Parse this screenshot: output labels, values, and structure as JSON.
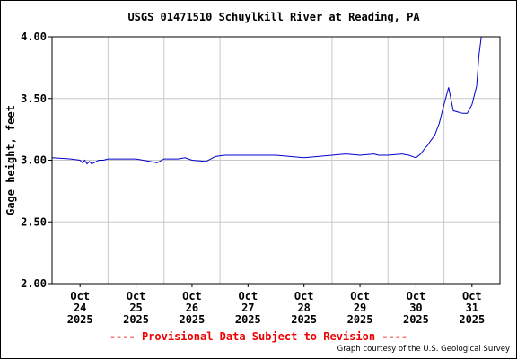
{
  "chart_data": {
    "type": "line",
    "title": "USGS 01471510 Schuylkill River at Reading, PA",
    "ylabel": "Gage height, feet",
    "xlabel": "",
    "ylim": [
      2.0,
      4.0
    ],
    "yticks": [
      "2.00",
      "2.50",
      "3.00",
      "3.50",
      "4.00"
    ],
    "xlim": [
      "2025-10-23T12:00",
      "2025-10-31T12:00"
    ],
    "xticks": [
      {
        "month": "Oct",
        "day": "24",
        "year": "2025"
      },
      {
        "month": "Oct",
        "day": "25",
        "year": "2025"
      },
      {
        "month": "Oct",
        "day": "26",
        "year": "2025"
      },
      {
        "month": "Oct",
        "day": "27",
        "year": "2025"
      },
      {
        "month": "Oct",
        "day": "28",
        "year": "2025"
      },
      {
        "month": "Oct",
        "day": "29",
        "year": "2025"
      },
      {
        "month": "Oct",
        "day": "30",
        "year": "2025"
      },
      {
        "month": "Oct",
        "day": "31",
        "year": "2025"
      }
    ],
    "grid": true,
    "colors": {
      "line": "#0000cc",
      "grid": "#c8c8c8",
      "provisional": "#ee0000"
    },
    "series": [
      {
        "x": [
          "2025-10-23T12:00",
          "2025-10-23T20:00",
          "2025-10-24T00:00",
          "2025-10-24T01:00",
          "2025-10-24T02:00",
          "2025-10-24T03:00",
          "2025-10-24T04:00",
          "2025-10-24T05:00",
          "2025-10-24T06:00",
          "2025-10-24T07:00",
          "2025-10-24T08:00",
          "2025-10-24T10:00",
          "2025-10-24T12:00",
          "2025-10-24T18:00",
          "2025-10-25T00:00",
          "2025-10-25T06:00",
          "2025-10-25T09:00",
          "2025-10-25T12:00",
          "2025-10-25T18:00",
          "2025-10-25T21:00",
          "2025-10-26T00:00",
          "2025-10-26T06:00",
          "2025-10-26T10:00",
          "2025-10-26T14:00",
          "2025-10-26T18:00",
          "2025-10-27T00:00",
          "2025-10-27T06:00",
          "2025-10-27T12:00",
          "2025-10-27T18:00",
          "2025-10-28T00:00",
          "2025-10-28T06:00",
          "2025-10-28T12:00",
          "2025-10-28T18:00",
          "2025-10-29T00:00",
          "2025-10-29T06:00",
          "2025-10-29T08:00",
          "2025-10-29T12:00",
          "2025-10-29T18:00",
          "2025-10-29T21:00",
          "2025-10-30T00:00",
          "2025-10-30T02:00",
          "2025-10-30T04:00",
          "2025-10-30T05:00",
          "2025-10-30T06:00",
          "2025-10-30T08:00",
          "2025-10-30T10:00",
          "2025-10-30T12:00",
          "2025-10-30T14:00",
          "2025-10-30T16:00",
          "2025-10-30T20:00",
          "2025-10-30T22:00",
          "2025-10-31T00:00",
          "2025-10-31T02:00",
          "2025-10-31T03:00",
          "2025-10-31T04:00"
        ],
        "y": [
          3.02,
          3.01,
          3.0,
          2.98,
          3.0,
          2.97,
          2.99,
          2.97,
          2.98,
          2.99,
          3.0,
          3.0,
          3.01,
          3.01,
          3.01,
          2.99,
          2.98,
          3.01,
          3.01,
          3.02,
          3.0,
          2.99,
          3.03,
          3.04,
          3.04,
          3.04,
          3.04,
          3.04,
          3.03,
          3.02,
          3.03,
          3.04,
          3.05,
          3.04,
          3.05,
          3.04,
          3.04,
          3.05,
          3.04,
          3.02,
          3.05,
          3.1,
          3.12,
          3.15,
          3.2,
          3.3,
          3.45,
          3.59,
          3.4,
          3.38,
          3.38,
          3.45,
          3.6,
          3.85,
          4.0
        ]
      }
    ]
  },
  "footer": {
    "provisional": "---- Provisional Data Subject to Revision ----",
    "credit": "Graph courtesy of the U.S. Geological Survey"
  }
}
